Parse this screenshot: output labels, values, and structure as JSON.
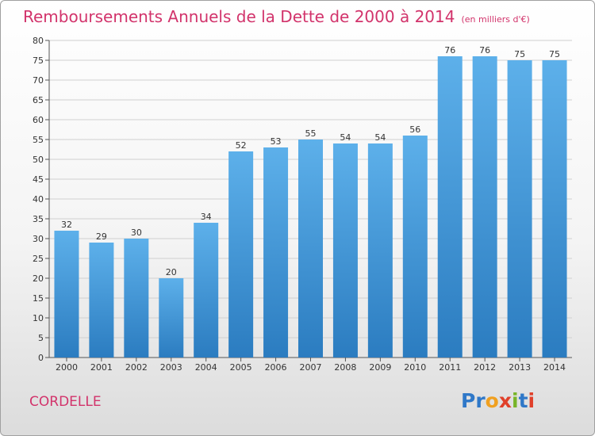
{
  "title": "Remboursements Annuels de la Dette de 2000 à 2014",
  "subtitle": "(en milliers d'€)",
  "town": "CORDELLE",
  "logo": {
    "text": "Proxiti",
    "letter_colors": [
      "#2f78c8",
      "#2f78c8",
      "#f0a020",
      "#e0402a",
      "#78b428",
      "#2f78c8",
      "#e0402a"
    ]
  },
  "colors": {
    "title": "#d2336b",
    "bar_top": "#5db0ea",
    "bar_bottom": "#2b7cc0"
  },
  "chart_data": {
    "type": "bar",
    "title": "Remboursements Annuels de la Dette de 2000 à 2014",
    "subtitle": "(en milliers d'€)",
    "categories": [
      "2000",
      "2001",
      "2002",
      "2003",
      "2004",
      "2005",
      "2006",
      "2007",
      "2008",
      "2009",
      "2010",
      "2011",
      "2012",
      "2013",
      "2014"
    ],
    "values": [
      32,
      29,
      30,
      20,
      34,
      52,
      53,
      55,
      54,
      54,
      56,
      76,
      76,
      75,
      75
    ],
    "ylim": [
      0,
      80
    ],
    "yticks": [
      0,
      5,
      10,
      15,
      20,
      25,
      30,
      35,
      40,
      45,
      50,
      55,
      60,
      65,
      70,
      75,
      80
    ],
    "grid": true
  }
}
